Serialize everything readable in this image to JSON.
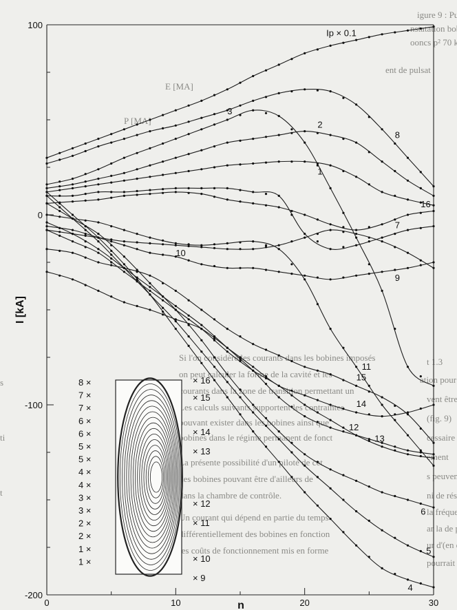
{
  "chart_data": {
    "type": "line",
    "title": "",
    "xlabel": "n",
    "ylabel": "I [kA]",
    "xlim": [
      0,
      30
    ],
    "ylim": [
      -200,
      100
    ],
    "grid": false,
    "x_ticks": [
      "0",
      "10",
      "20",
      "30"
    ],
    "y_ticks": [
      "100",
      "0",
      "-100",
      "-200"
    ],
    "x": [
      0,
      2,
      4,
      6,
      8,
      10,
      12,
      14,
      16,
      18,
      20,
      22,
      24,
      26,
      28,
      30
    ],
    "series": [
      {
        "name": "Ip × 0.1",
        "values": [
          30,
          35,
          40,
          45,
          50,
          55,
          60,
          66,
          73,
          79,
          85,
          89,
          92,
          95,
          97,
          99
        ]
      },
      {
        "name": "8",
        "values": [
          27,
          31,
          36,
          40,
          44,
          47,
          51,
          55,
          60,
          64,
          66,
          65,
          58,
          45,
          30,
          15
        ]
      },
      {
        "name": "3",
        "values": [
          16,
          19,
          24,
          30,
          35,
          40,
          45,
          50,
          55,
          52,
          38,
          14,
          -12,
          -40,
          -80,
          -90
        ]
      },
      {
        "name": "2",
        "values": [
          14,
          16,
          19,
          22,
          26,
          30,
          34,
          38,
          40,
          42,
          44,
          42,
          38,
          28,
          18,
          10
        ]
      },
      {
        "name": "1",
        "values": [
          12,
          14,
          16,
          18,
          20,
          22,
          24,
          26,
          27,
          28,
          28,
          26,
          20,
          12,
          8,
          5
        ]
      },
      {
        "name": "7",
        "values": [
          10,
          10,
          12,
          12,
          13,
          14,
          14,
          14,
          12,
          10,
          -10,
          -18,
          -16,
          -12,
          -8,
          -6
        ]
      },
      {
        "name": "16",
        "values": [
          6,
          7,
          8,
          10,
          11,
          12,
          11,
          8,
          6,
          4,
          0,
          -5,
          -8,
          -5,
          0,
          2
        ]
      },
      {
        "name": "9",
        "values": [
          -6,
          -8,
          -12,
          -16,
          -20,
          -22,
          -26,
          -28,
          -28,
          -30,
          -32,
          -34,
          -32,
          -30,
          -28,
          -25
        ]
      },
      {
        "name": "10",
        "values": [
          -8,
          -10,
          -12,
          -14,
          -15,
          -16,
          -17,
          -18,
          -18,
          -16,
          -12,
          -8,
          -10,
          -14,
          -20,
          -28
        ]
      },
      {
        "name": "11",
        "values": [
          0,
          -2,
          -4,
          -8,
          -12,
          -15,
          -16,
          -15,
          -14,
          -18,
          -34,
          -60,
          -80,
          -100,
          -116,
          -132
        ]
      },
      {
        "name": "14",
        "values": [
          -30,
          -34,
          -40,
          -46,
          -50,
          -55,
          -60,
          -70,
          -80,
          -90,
          -95,
          -100,
          -104,
          -106,
          -104,
          -100
        ]
      },
      {
        "name": "15",
        "values": [
          -18,
          -20,
          -25,
          -28,
          -32,
          -40,
          -50,
          -60,
          -68,
          -74,
          -80,
          -84,
          -90,
          -96,
          -105,
          -120
        ]
      },
      {
        "name": "12",
        "values": [
          -8,
          -14,
          -20,
          -30,
          -40,
          -50,
          -60,
          -72,
          -82,
          -90,
          -100,
          -108,
          -116,
          -122,
          -126,
          -128
        ]
      },
      {
        "name": "13",
        "values": [
          -4,
          -10,
          -18,
          -28,
          -38,
          -48,
          -58,
          -70,
          -82,
          -96,
          -106,
          -112,
          -116,
          -120,
          -124,
          -126
        ]
      },
      {
        "name": "6",
        "values": [
          6,
          -2,
          -10,
          -22,
          -36,
          -50,
          -66,
          -84,
          -100,
          -114,
          -126,
          -134,
          -140,
          -146,
          -150,
          -154
        ]
      },
      {
        "name": "5",
        "values": [
          10,
          -2,
          -14,
          -28,
          -42,
          -56,
          -72,
          -88,
          -104,
          -118,
          -132,
          -144,
          -156,
          -166,
          -174,
          -180
        ]
      },
      {
        "name": "4",
        "values": [
          12,
          0,
          -12,
          -26,
          -42,
          -60,
          -78,
          -96,
          -114,
          -130,
          -146,
          -160,
          -174,
          -186,
          -192,
          -196
        ]
      }
    ],
    "inset": {
      "left_labels": [
        "8 ×",
        "7 ×",
        "7 ×",
        "6 ×",
        "6 ×",
        "5 ×",
        "5 ×",
        "4 ×",
        "4 ×",
        "3 ×",
        "3 ×",
        "2 ×",
        "2 ×",
        "1 ×",
        "1 ×"
      ],
      "right_labels": [
        "× 16",
        "× 15",
        "× 14",
        "× 13",
        "× 12",
        "× 11",
        "× 10",
        "× 9"
      ]
    }
  }
}
